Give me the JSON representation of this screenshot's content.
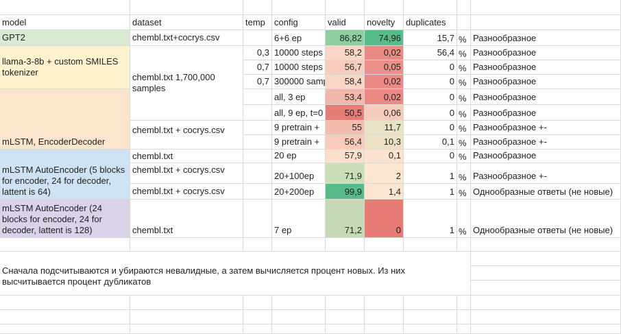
{
  "headers": {
    "model": "model",
    "dataset": "dataset",
    "temp": "temp",
    "config": "config",
    "valid": "valid",
    "novelty": "novelty",
    "duplicates": "duplicates"
  },
  "colors": {
    "gpt2": "#d9ead3",
    "llama": "#fff2cc",
    "mlstm": "#fce5cd",
    "autoenc5": "#cfe2f3",
    "autoenc24": "#d9d2e9"
  },
  "rows": [
    {
      "model": "GPT2",
      "dataset": "chembl.txt+cocrys.csv",
      "temp": "",
      "config": "6+6 ep",
      "valid": "86,82",
      "valid_bg": "#8fce9e",
      "novelty": "74,96",
      "novelty_bg": "#57bb8a",
      "duplicates": "15,7",
      "pct": "%",
      "note": "Разнообразное"
    },
    {
      "model": "",
      "dataset": "",
      "temp": "0,3",
      "config": "10000 steps",
      "valid": "58,2",
      "valid_bg": "#f9d5c5",
      "novelty": "0,02",
      "novelty_bg": "#ea8a82",
      "duplicates": "56,4",
      "pct": "%",
      "note": "Разнообразное"
    },
    {
      "model": "",
      "dataset": "",
      "temp": "0,7",
      "config": "10000 steps",
      "valid": "56,7",
      "valid_bg": "#f8cdbd",
      "novelty": "0,05",
      "novelty_bg": "#eb9088",
      "duplicates": "0",
      "pct": "%",
      "note": "Разнообразное"
    },
    {
      "model": "",
      "dataset": "",
      "temp": "0,7",
      "config": "300000 samples",
      "valid": "58,4",
      "valid_bg": "#f9d6c6",
      "novelty": "0,02",
      "novelty_bg": "#ea8a82",
      "duplicates": "0",
      "pct": "%",
      "note": "Разнообразное"
    },
    {
      "model": "",
      "dataset": "",
      "temp": "",
      "config": "all, 3 ep",
      "valid": "53,4",
      "valid_bg": "#f3b8ab",
      "novelty": "0,02",
      "novelty_bg": "#ea8a82",
      "duplicates": "0",
      "pct": "%",
      "note": "Разнообразное"
    },
    {
      "model": "",
      "dataset": "",
      "temp": "",
      "config": "all, 9 ep, t=0",
      "valid": "50,5",
      "valid_bg": "#e67c73",
      "novelty": "0,06",
      "novelty_bg": "#f7cbbc",
      "duplicates": "0",
      "pct": "%",
      "note": "Разнообразное"
    },
    {
      "model": "",
      "dataset": "chembl.txt + cocrys.csv",
      "temp": "",
      "config": "9 pretrain +",
      "valid": "55",
      "valid_bg": "#f4bcae",
      "novelty": "11,7",
      "novelty_bg": "#e7e2c3",
      "duplicates": "0",
      "pct": "%",
      "note": "Разнообразное +-"
    },
    {
      "model": "",
      "dataset": "",
      "temp": "",
      "config": "9 pretrain +",
      "valid": "56,4",
      "valid_bg": "#f8cbbb",
      "novelty": "10,3",
      "novelty_bg": "#ede0c3",
      "duplicates": "0,1",
      "pct": "%",
      "note": "Разнообразное +-"
    },
    {
      "model": "",
      "dataset": "chembl.txt",
      "temp": "",
      "config": "20 ep",
      "valid": "57,9",
      "valid_bg": "#fbdfcb",
      "novelty": "0,1",
      "novelty_bg": "#fce3d0",
      "duplicates": "0",
      "pct": "%",
      "note": "Разнообразное"
    },
    {
      "model": "",
      "dataset": "chembl.txt + cocrys.csv",
      "temp": "",
      "config": "20+100ep",
      "valid": "71,9",
      "valid_bg": "#c9dfb7",
      "novelty": "2",
      "novelty_bg": "#fbe7d1",
      "duplicates": "1",
      "pct": "%",
      "note": "Разнообразное +-"
    },
    {
      "model": "",
      "dataset": "chembl.txt + cocrys.csv",
      "temp": "",
      "config": "20+200ep",
      "valid": "99,9",
      "valid_bg": "#57bb8a",
      "novelty": "1,4",
      "novelty_bg": "#fbe5d0",
      "duplicates": "1",
      "pct": "%",
      "note": "Однообразные ответы (не новые)"
    },
    {
      "model": "",
      "dataset": "chembl.txt",
      "temp": "",
      "config": "7 ep",
      "valid": "71,2",
      "valid_bg": "#c7d9b4",
      "novelty": "0",
      "novelty_bg": "#e67c73",
      "duplicates": "1",
      "pct": "%",
      "note": "Однообразные ответы (не новые)"
    }
  ],
  "models": {
    "llama": "llama-3-8b + custom SMILES tokenizer",
    "mlstm": "mLSTM, EncoderDecoder",
    "autoenc5": "mLSTM AutoEncoder (5 blocks for encoder, 24 for decoder, lattent is 64)",
    "autoenc24": "mLSTM AutoEncoder (24 blocks for encoder, 24 for decoder, lattent is 128)"
  },
  "datasets": {
    "chembl_samples": "chembl.txt 1,700,000 samples"
  },
  "footnote": "Сначала подсчитываются и убираются невалидные, а затем вычисляется процент новых. Из них высчитывается процент дубликатов"
}
